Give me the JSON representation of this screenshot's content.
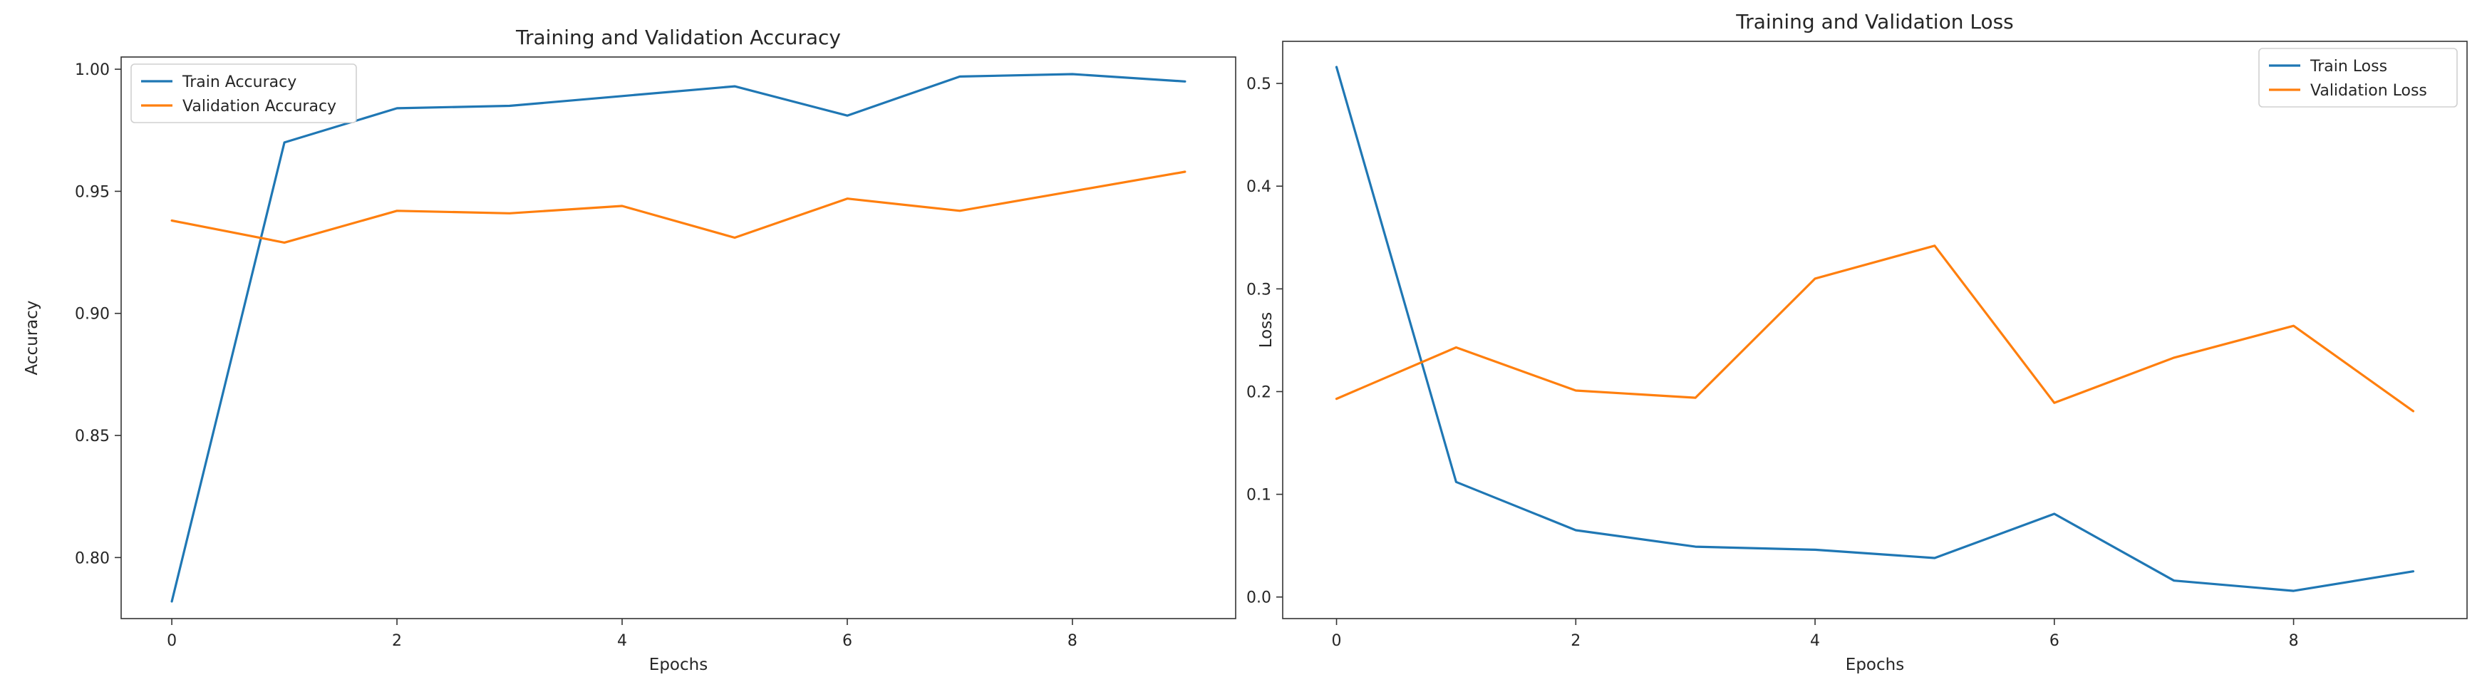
{
  "colors": {
    "train": "#1f77b4",
    "validation": "#ff7f0e",
    "axis": "#333333"
  },
  "chart_data": [
    {
      "type": "line",
      "title": "Training and Validation Accuracy",
      "xlabel": "Epochs",
      "ylabel": "Accuracy",
      "x": [
        0,
        1,
        2,
        3,
        4,
        5,
        6,
        7,
        8,
        9
      ],
      "xlim": [
        -0.45,
        9.45
      ],
      "ylim": [
        0.775,
        1.005
      ],
      "xticks": [
        0,
        2,
        4,
        6,
        8
      ],
      "yticks": [
        0.8,
        0.85,
        0.9,
        0.95,
        1.0
      ],
      "ytick_labels": [
        "0.80",
        "0.85",
        "0.90",
        "0.95",
        "1.00"
      ],
      "legend_position": "top-left",
      "series": [
        {
          "name": "Train Accuracy",
          "color": "#1f77b4",
          "values": [
            0.782,
            0.97,
            0.984,
            0.985,
            0.989,
            0.993,
            0.981,
            0.997,
            0.998,
            0.995
          ]
        },
        {
          "name": "Validation Accuracy",
          "color": "#ff7f0e",
          "values": [
            0.938,
            0.929,
            0.942,
            0.941,
            0.944,
            0.931,
            0.947,
            0.942,
            0.95,
            0.958
          ]
        }
      ]
    },
    {
      "type": "line",
      "title": "Training and Validation Loss",
      "xlabel": "Epochs",
      "ylabel": "Loss",
      "x": [
        0,
        1,
        2,
        3,
        4,
        5,
        6,
        7,
        8,
        9
      ],
      "xlim": [
        -0.45,
        9.45
      ],
      "ylim": [
        -0.021,
        0.541
      ],
      "xticks": [
        0,
        2,
        4,
        6,
        8
      ],
      "yticks": [
        0.0,
        0.1,
        0.2,
        0.3,
        0.4,
        0.5
      ],
      "ytick_labels": [
        "0.0",
        "0.1",
        "0.2",
        "0.3",
        "0.4",
        "0.5"
      ],
      "legend_position": "top-right",
      "series": [
        {
          "name": "Train Loss",
          "color": "#1f77b4",
          "values": [
            0.516,
            0.112,
            0.065,
            0.049,
            0.046,
            0.038,
            0.081,
            0.016,
            0.006,
            0.025
          ]
        },
        {
          "name": "Validation Loss",
          "color": "#ff7f0e",
          "values": [
            0.193,
            0.243,
            0.201,
            0.194,
            0.31,
            0.342,
            0.189,
            0.233,
            0.264,
            0.181
          ]
        }
      ]
    }
  ]
}
